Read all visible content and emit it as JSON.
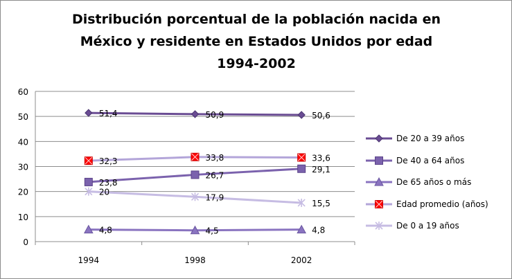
{
  "chart_data": {
    "type": "line",
    "title_lines": [
      "Distribución porcentual de la población nacida en",
      "México y residente en Estados Unidos por edad",
      "1994-2002"
    ],
    "categories": [
      "1994",
      "1998",
      "2002"
    ],
    "ylim": [
      0,
      60
    ],
    "yticks": [
      "0",
      "10",
      "20",
      "30",
      "40",
      "50",
      "60"
    ],
    "grid": true,
    "legend_position": "right",
    "series": [
      {
        "name": "De 20 a 39 años",
        "values": [
          51.4,
          50.9,
          50.6
        ],
        "labels": [
          "51,4",
          "50,9",
          "50,6"
        ],
        "color": "#6a4c93",
        "marker": "diamond"
      },
      {
        "name": "De 40 a 64 años",
        "values": [
          23.8,
          26.7,
          29.1
        ],
        "labels": [
          "23,8",
          "26,7",
          "29,1"
        ],
        "color": "#7b62ad",
        "marker": "square"
      },
      {
        "name": "De 65 años o más",
        "values": [
          4.8,
          4.5,
          4.8
        ],
        "labels": [
          "4,8",
          "4,5",
          "4,8"
        ],
        "color": "#8a74c0",
        "marker": "triangle"
      },
      {
        "name": "Edad promedio (años)",
        "values": [
          32.3,
          33.8,
          33.6
        ],
        "labels": [
          "32,3",
          "33,8",
          "33,6"
        ],
        "color": "#b3a5d9",
        "marker": "xsquare",
        "markerColor": "#ff0000"
      },
      {
        "name": "De 0 a 19 años",
        "values": [
          20,
          17.9,
          15.5
        ],
        "labels": [
          "20",
          "17,9",
          "15,5"
        ],
        "color": "#c6bce3",
        "marker": "asterisk"
      }
    ]
  }
}
